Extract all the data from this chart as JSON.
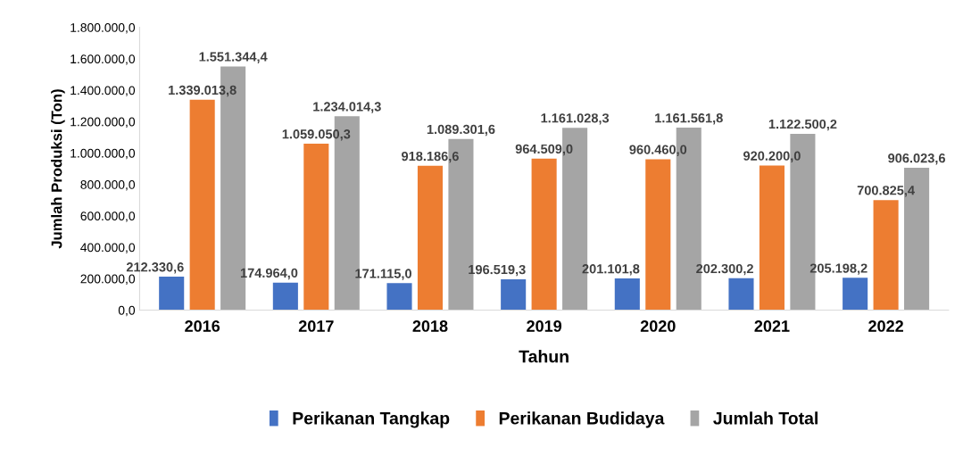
{
  "chart_data": {
    "type": "bar",
    "xlabel": "Tahun",
    "ylabel": "Jumlah Produksi (Ton)",
    "categories": [
      "2016",
      "2017",
      "2018",
      "2019",
      "2020",
      "2021",
      "2022"
    ],
    "series": [
      {
        "name": "Perikanan Tangkap",
        "color": "#4472c4",
        "values": [
          212330.6,
          174964.0,
          171115.0,
          196519.3,
          201101.8,
          202300.2,
          205198.2
        ],
        "value_labels": [
          "212.330,6",
          "174.964,0",
          "171.115,0",
          "196.519,3",
          "201.101,8",
          "202.300,2",
          "205.198,2"
        ]
      },
      {
        "name": "Perikanan Budidaya",
        "color": "#ed7d31",
        "values": [
          1339013.8,
          1059050.3,
          918186.6,
          964509.0,
          960460.0,
          920200.0,
          700825.4
        ],
        "value_labels": [
          "1.339.013,8",
          "1.059.050,3",
          "918.186,6",
          "964.509,0",
          "960.460,0",
          "920.200,0",
          "700.825,4"
        ]
      },
      {
        "name": "Jumlah Total",
        "color": "#a5a5a5",
        "values": [
          1551344.4,
          1234014.3,
          1089301.6,
          1161028.3,
          1161561.8,
          1122500.2,
          906023.6
        ],
        "value_labels": [
          "1.551.344,4",
          "1.234.014,3",
          "1.089.301,6",
          "1.161.028,3",
          "1.161.561,8",
          "1.122.500,2",
          "906.023,6"
        ]
      }
    ],
    "ylim": [
      0,
      1800000
    ],
    "yticks": [
      {
        "value": 0,
        "label": "0,0"
      },
      {
        "value": 200000,
        "label": "200.000,0"
      },
      {
        "value": 400000,
        "label": "400.000,0"
      },
      {
        "value": 600000,
        "label": "600.000,0"
      },
      {
        "value": 800000,
        "label": "800.000,0"
      },
      {
        "value": 1000000,
        "label": "1.000.000,0"
      },
      {
        "value": 1200000,
        "label": "1.200.000,0"
      },
      {
        "value": 1400000,
        "label": "1.400.000,0"
      },
      {
        "value": 1600000,
        "label": "1.600.000,0"
      },
      {
        "value": 1800000,
        "label": "1.800.000,0"
      }
    ],
    "grid": false,
    "legend": "bottom"
  }
}
